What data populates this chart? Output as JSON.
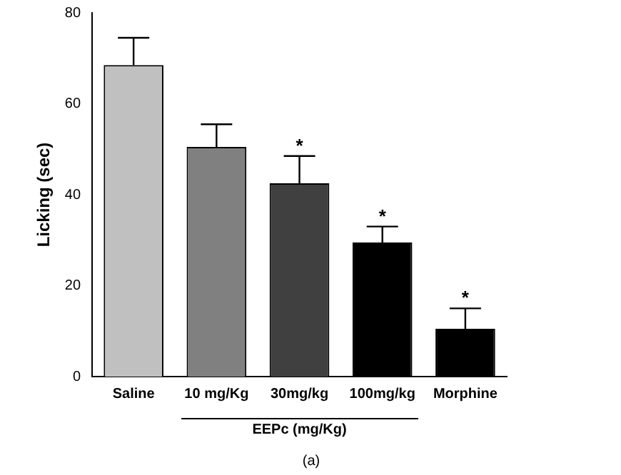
{
  "chart_data": {
    "type": "bar",
    "ylabel": "Licking (sec)",
    "categories": [
      "Saline",
      "10 mg/Kg",
      "30mg/kg",
      "100mg/kg",
      "Morphine"
    ],
    "values": [
      68.5,
      50.5,
      42.5,
      29.5,
      10.5
    ],
    "colors": [
      "#c0c0c0",
      "#808080",
      "#404040",
      "#000000",
      "#000000"
    ],
    "errors": [
      [
        68.5,
        74.5
      ],
      [
        50.5,
        55.5
      ],
      [
        42.5,
        48.5
      ],
      [
        29.5,
        33
      ],
      [
        10.5,
        15
      ]
    ],
    "ylim": [
      0,
      80
    ],
    "yticks": [
      0,
      20,
      40,
      60,
      80
    ],
    "grid": false,
    "legend": false,
    "annotations": [
      {
        "text": "*",
        "x": "30mg/kg",
        "y": 48.5
      },
      {
        "text": "*",
        "x": "100mg/kg",
        "y": 33
      },
      {
        "text": "*",
        "x": "Morphine",
        "y": 15
      },
      "EEPc (mg/Kg)",
      "(a)"
    ]
  }
}
